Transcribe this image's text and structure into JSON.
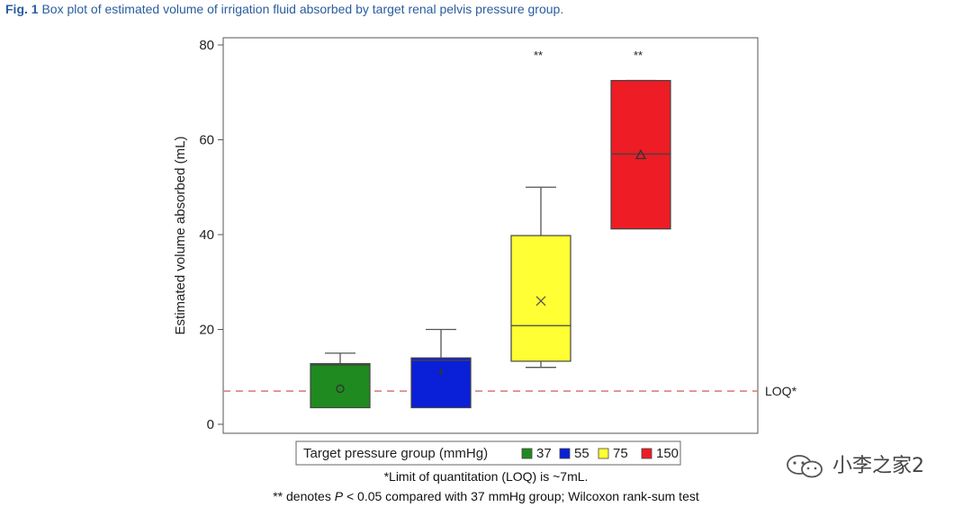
{
  "caption": {
    "fig_label": "Fig. 1",
    "text": "Box plot of estimated volume of irrigation fluid absorbed by target renal pelvis pressure group."
  },
  "chart_data": {
    "type": "box",
    "ylabel": "Estimated volume absorbed (mL)",
    "ylim": [
      -2,
      82
    ],
    "yticks": [
      0,
      20,
      40,
      60,
      80
    ],
    "legend_title": "Target pressure group (mmHg)",
    "legend_placement": "bottom",
    "groups": [
      {
        "name": "37",
        "color": "#1f8a1f",
        "whisker_low": 3.5,
        "q1": 3.5,
        "median": 12.5,
        "q3": 12.8,
        "whisker_high": 15,
        "mean": 7.5,
        "mean_marker": "circle",
        "significance": ""
      },
      {
        "name": "55",
        "color": "#0a1fd8",
        "whisker_low": 3.5,
        "q1": 3.5,
        "median": 13.5,
        "q3": 14,
        "whisker_high": 20,
        "mean": 11,
        "mean_marker": "plus",
        "significance": ""
      },
      {
        "name": "75",
        "color": "#ffff33",
        "whisker_low": 12,
        "q1": 13.3,
        "median": 20.8,
        "q3": 39.8,
        "whisker_high": 50,
        "mean": 26,
        "mean_marker": "x",
        "significance": "**"
      },
      {
        "name": "150",
        "color": "#ee1c24",
        "whisker_low": 41.2,
        "q1": 41.2,
        "median": 57,
        "q3": 72.5,
        "whisker_high": 72.5,
        "mean": 56.8,
        "mean_marker": "triangle",
        "significance": "**"
      }
    ],
    "reference_line": {
      "y": 7,
      "label": "LOQ*",
      "color": "#d98080"
    },
    "grid": false
  },
  "footnotes": {
    "loq": "*Limit of quantitation (LOQ) is ~7mL.",
    "sig_prefix": "** denotes ",
    "sig_p": "P",
    "sig_suffix": " < 0.05 compared with 37 mmHg group; Wilcoxon rank-sum test"
  },
  "watermark": {
    "text": "小李之家2",
    "icon": "wechat-icon"
  }
}
